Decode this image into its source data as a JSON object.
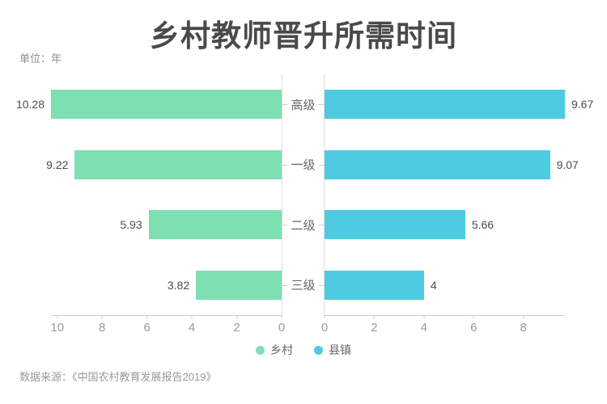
{
  "title": "乡村教师晋升所需时间",
  "unit_label": "单位：年",
  "source": "数据来源：《中国农村教育发展报告2019》",
  "colors": {
    "rural_green": "#7EDFB2",
    "county_blue": "#4DCBE0",
    "axis_line": "#cccccc",
    "center_axis_line": "#dddddd",
    "tick_text": "#9a9a9a",
    "category_text": "#666666",
    "value_text": "#4d4d4d",
    "title_text": "#4a4a4a"
  },
  "chart_data": {
    "type": "bar",
    "orientation": "horizontal-bilateral",
    "title": "乡村教师晋升所需时间",
    "unit": "年",
    "categories": [
      "高级",
      "一级",
      "二级",
      "三级"
    ],
    "series": [
      {
        "name": "乡村",
        "side": "left",
        "color": "#7EDFB2",
        "values": [
          10.28,
          9.22,
          5.93,
          3.82
        ],
        "axis_max": 10.28,
        "ticks": [
          10,
          8,
          6,
          4,
          2,
          0
        ]
      },
      {
        "name": "县镇",
        "side": "right",
        "color": "#4DCBE0",
        "values": [
          9.67,
          9.07,
          5.66,
          4
        ],
        "axis_max": 9.67,
        "ticks": [
          0,
          2,
          4,
          6,
          8
        ]
      }
    ],
    "legend": [
      {
        "label": "乡村",
        "color": "#7EDFB2"
      },
      {
        "label": "县镇",
        "color": "#4DCBE0"
      }
    ],
    "legend_position": "bottom-center",
    "grid": false,
    "value_labels": true
  }
}
